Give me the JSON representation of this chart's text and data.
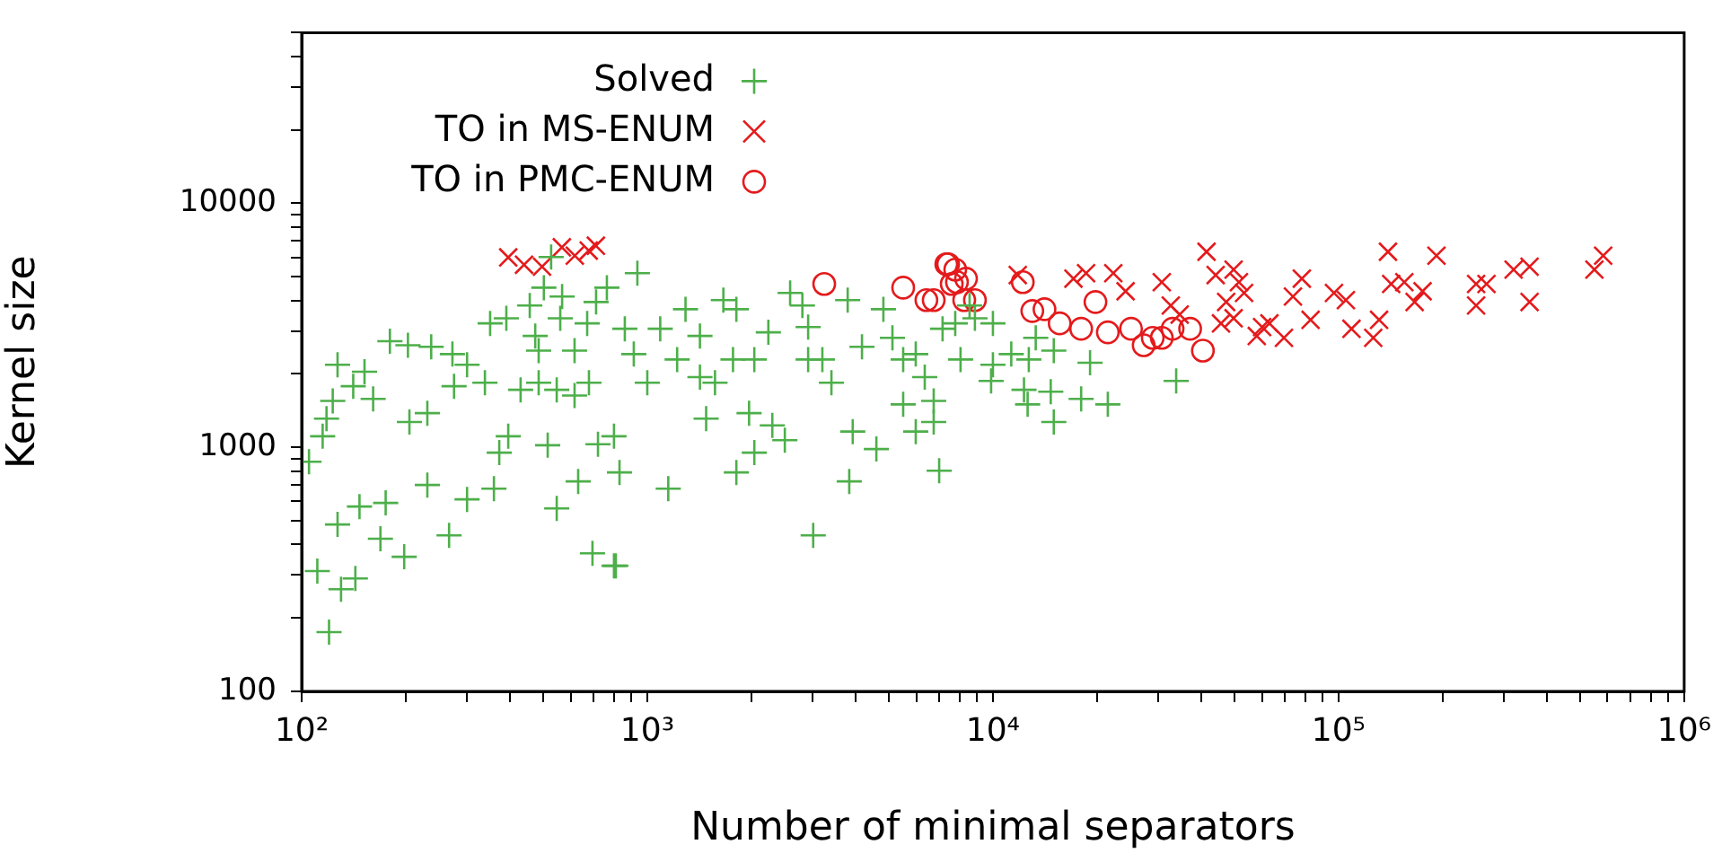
{
  "chart_data": {
    "type": "scatter",
    "xlabel": "Number of minimal separators",
    "ylabel": "Kernel size",
    "log": "xy",
    "grid": false,
    "legend": "top left",
    "xlim": [
      100,
      1000000
    ],
    "ylim": [
      100,
      50000
    ],
    "xticks": [
      {
        "value": 100,
        "label": "10²"
      },
      {
        "value": 200,
        "label": null
      },
      {
        "value": 300,
        "label": null
      },
      {
        "value": 400,
        "label": null
      },
      {
        "value": 500,
        "label": null
      },
      {
        "value": 600,
        "label": null
      },
      {
        "value": 700,
        "label": null
      },
      {
        "value": 800,
        "label": null
      },
      {
        "value": 900,
        "label": null
      },
      {
        "value": 1000,
        "label": "10³"
      },
      {
        "value": 2000,
        "label": null
      },
      {
        "value": 3000,
        "label": null
      },
      {
        "value": 4000,
        "label": null
      },
      {
        "value": 5000,
        "label": null
      },
      {
        "value": 6000,
        "label": null
      },
      {
        "value": 7000,
        "label": null
      },
      {
        "value": 8000,
        "label": null
      },
      {
        "value": 9000,
        "label": null
      },
      {
        "value": 10000,
        "label": "10⁴"
      },
      {
        "value": 20000,
        "label": null
      },
      {
        "value": 30000,
        "label": null
      },
      {
        "value": 40000,
        "label": null
      },
      {
        "value": 50000,
        "label": null
      },
      {
        "value": 60000,
        "label": null
      },
      {
        "value": 70000,
        "label": null
      },
      {
        "value": 80000,
        "label": null
      },
      {
        "value": 90000,
        "label": null
      },
      {
        "value": 100000,
        "label": "10⁵"
      },
      {
        "value": 200000,
        "label": null
      },
      {
        "value": 300000,
        "label": null
      },
      {
        "value": 400000,
        "label": null
      },
      {
        "value": 500000,
        "label": null
      },
      {
        "value": 600000,
        "label": null
      },
      {
        "value": 700000,
        "label": null
      },
      {
        "value": 800000,
        "label": null
      },
      {
        "value": 900000,
        "label": null
      },
      {
        "value": 1000000,
        "label": "10⁶"
      }
    ],
    "yticks": [
      100,
      {
        "value": 200,
        "label": null
      },
      {
        "value": 300,
        "label": null
      },
      {
        "value": 400,
        "label": null
      },
      {
        "value": 500,
        "label": null
      },
      {
        "value": 600,
        "label": null
      },
      {
        "value": 700,
        "label": null
      },
      {
        "value": 800,
        "label": null
      },
      {
        "value": 900,
        "label": null
      },
      1000,
      {
        "value": 2000,
        "label": null
      },
      {
        "value": 3000,
        "label": null
      },
      {
        "value": 4000,
        "label": null
      },
      {
        "value": 5000,
        "label": null
      },
      {
        "value": 6000,
        "label": null
      },
      {
        "value": 7000,
        "label": null
      },
      {
        "value": 8000,
        "label": null
      },
      {
        "value": 9000,
        "label": null
      },
      10000,
      {
        "value": 20000,
        "label": null
      },
      {
        "value": 30000,
        "label": null
      },
      {
        "value": 40000,
        "label": null
      },
      {
        "value": 50000,
        "label": null
      }
    ],
    "series": [
      {
        "name": "Solved",
        "color": "#4daf4a",
        "marker": "cross",
        "x": [
          105,
          111,
          120,
          130,
          143,
          127,
          147,
          175,
          169,
          198,
          231,
          267,
          301,
          360,
          373,
          396,
          515,
          547,
          631,
          694,
          801,
          720,
          801,
          831,
          115,
          118,
          123,
          127,
          141,
          152,
          161,
          180,
          203,
          205,
          231,
          237,
          273,
          276,
          301,
          339,
          351,
          391,
          430,
          457,
          474,
          502,
          567,
          560,
          485,
          547,
          616,
          670,
          711,
          764,
          936,
          678,
          527,
          914,
          861,
          811,
          1150,
          1290,
          1660,
          1810,
          1000,
          1090,
          1220,
          1420,
          1570,
          1480,
          1770,
          1970,
          2040,
          1810,
          2300,
          2500,
          2240,
          2590,
          2810,
          2920,
          3020,
          3210,
          3410,
          3800,
          3840,
          3930,
          4600,
          4180,
          4820,
          5120,
          5500,
          5980,
          6350,
          6740,
          6740,
          6990,
          7150,
          7780,
          5980,
          5500,
          8870,
          10000,
          11300,
          10000,
          9880,
          12300,
          12600,
          14700,
          15000,
          18000,
          19100,
          21500,
          33900,
          12700,
          13300,
          15000,
          8060,
          8560,
          2920,
          2040,
          1420,
          485,
          616
        ],
        "values": [
          873,
          311,
          175,
          262,
          290,
          483,
          572,
          592,
          422,
          356,
          701,
          436,
          612,
          677,
          951,
          1110,
          1020,
          562,
          725,
          368,
          327,
          1030,
          1110,
          789,
          1110,
          1310,
          1550,
          2180,
          1780,
          2040,
          1580,
          2720,
          2620,
          1270,
          1380,
          2580,
          2410,
          1780,
          2180,
          1840,
          3220,
          3380,
          1720,
          3810,
          2860,
          4510,
          4150,
          3380,
          1840,
          1720,
          1630,
          3220,
          3940,
          4510,
          5170,
          1840,
          6020,
          2410,
          3060,
          327,
          677,
          3680,
          4010,
          3680,
          1840,
          3060,
          2290,
          2860,
          1840,
          1310,
          2290,
          1380,
          951,
          789,
          1230,
          1070,
          2960,
          4290,
          3810,
          3110,
          436,
          2290,
          1840,
          4010,
          725,
          1160,
          984,
          2580,
          3680,
          2810,
          1500,
          1160,
          1940,
          1550,
          1270,
          802,
          3060,
          3220,
          2410,
          2290,
          3380,
          3220,
          2410,
          2180,
          1870,
          1720,
          1500,
          1690,
          1270,
          1580,
          2220,
          1500,
          1870,
          2290,
          2810,
          2490,
          2290,
          3810,
          2290,
          2290,
          1940,
          2490,
          2490
        ]
      },
      {
        "name": "TO in MS-ENUM",
        "color": "#e41a1c",
        "marker": "x",
        "x": [
          396,
          440,
          496,
          566,
          617,
          677,
          710,
          11800,
          17100,
          18600,
          22300,
          24200,
          30800,
          32700,
          34700,
          41500,
          44100,
          49700,
          51500,
          47300,
          53300,
          58000,
          63100,
          49700,
          45700,
          60100,
          69500,
          73800,
          78300,
          83000,
          97000,
          105000,
          109000,
          126000,
          131000,
          139000,
          142000,
          155000,
          166000,
          175000,
          192000,
          250000,
          250000,
          268000,
          321000,
          357000,
          357000,
          550000,
          583000
        ],
        "values": [
          6000,
          5600,
          5500,
          6600,
          6100,
          6400,
          6700,
          5080,
          4910,
          5170,
          5170,
          4360,
          4750,
          3810,
          3500,
          6330,
          5080,
          5350,
          4750,
          3940,
          4290,
          2860,
          3220,
          3380,
          3220,
          3110,
          2810,
          4150,
          4910,
          3330,
          4290,
          4010,
          3060,
          2810,
          3330,
          6330,
          4670,
          4750,
          3940,
          4360,
          6100,
          4670,
          3810,
          4670,
          5350,
          5500,
          3940,
          5350,
          6100
        ]
      },
      {
        "name": "TO in PMC-ENUM",
        "color": "#e41a1c",
        "marker": "circle",
        "x": [
          3250,
          5500,
          6420,
          7330,
          7780,
          7600,
          8260,
          7420,
          7870,
          8360,
          8870,
          6740,
          12200,
          13000,
          14100,
          15600,
          18000,
          19800,
          21500,
          25100,
          27300,
          29000,
          30800,
          33100,
          37200,
          40500
        ],
        "values": [
          4670,
          4510,
          4010,
          5630,
          5350,
          4670,
          4010,
          5630,
          4750,
          4910,
          4010,
          4010,
          4750,
          3620,
          3680,
          3220,
          3060,
          3940,
          2960,
          3060,
          2620,
          2810,
          2810,
          3060,
          3060,
          2490
        ]
      }
    ]
  }
}
